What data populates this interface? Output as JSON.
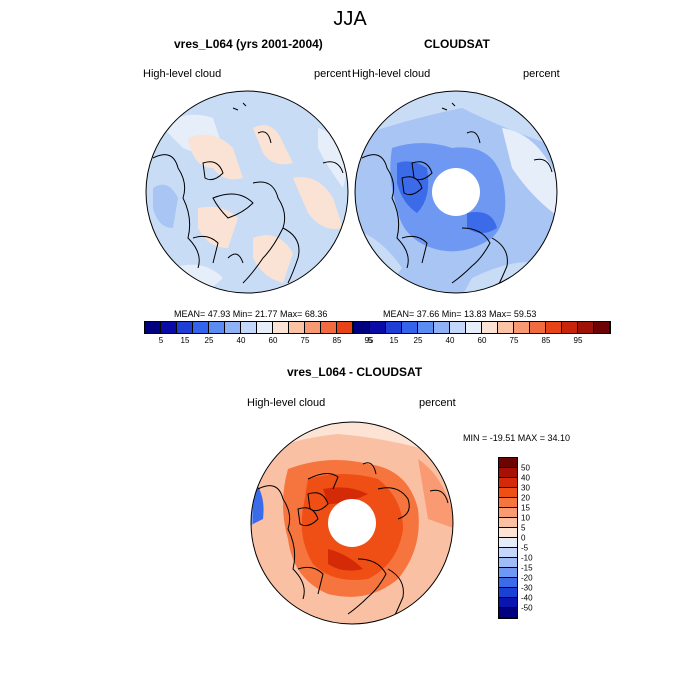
{
  "figure": {
    "title": "JJA"
  },
  "panels": [
    {
      "title": "vres_L064 (yrs 2001-2004)",
      "left_label": "High-level cloud",
      "right_label": "percent",
      "stats": "MEAN=  47.93  Min=  21.77  Max=  68.36"
    },
    {
      "title": "CLOUDSAT",
      "left_label": "High-level cloud",
      "right_label": "percent",
      "stats": "MEAN=  37.66  Min=  13.83  Max=  59.53"
    },
    {
      "title": "vres_L064 - CLOUDSAT",
      "left_label": "High-level cloud",
      "right_label": "percent",
      "stats": "MIN = -19.51 MAX =  34.10"
    }
  ],
  "colorbar_abs": {
    "colors": [
      "#000080",
      "#0a0aa6",
      "#1f3ed6",
      "#3464ec",
      "#5a8cf2",
      "#8fb2f6",
      "#c3d7fa",
      "#e6eefa",
      "#fae3d5",
      "#f9c3a4",
      "#f79a73",
      "#f26b40",
      "#e74317",
      "#c7240a",
      "#9e1207",
      "#6d0303"
    ],
    "labels": [
      "5",
      "15",
      "25",
      "40",
      "60",
      "75",
      "85",
      "95"
    ]
  },
  "colorbar_diff": {
    "colors": [
      "#6d0303",
      "#a81005",
      "#d52a07",
      "#ef4f14",
      "#f6743e",
      "#f99a73",
      "#fac0a4",
      "#fce3d4",
      "#e4ecfa",
      "#c4d6fa",
      "#9ebdf8",
      "#6e98f2",
      "#3b6be8",
      "#1a40d6",
      "#0a14b0",
      "#000080"
    ],
    "labels": [
      "50",
      "40",
      "30",
      "20",
      "15",
      "10",
      "5",
      "0",
      "-5",
      "-10",
      "-15",
      "-20",
      "-30",
      "-40",
      "-50"
    ]
  }
}
